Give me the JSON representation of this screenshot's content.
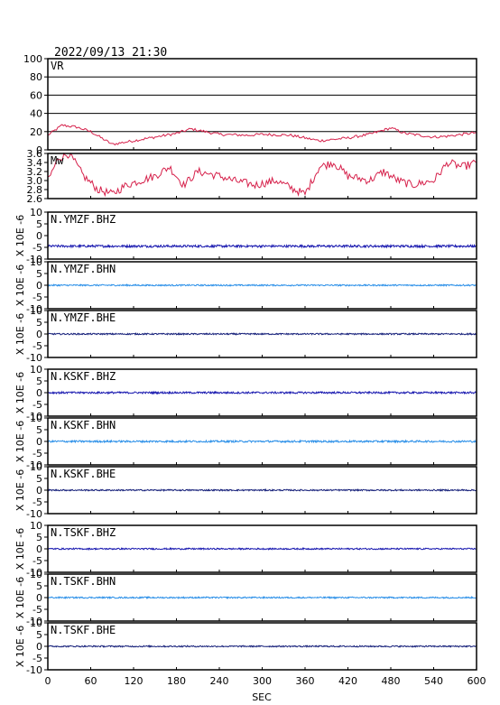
{
  "header": {
    "datetime": "2022/09/13 21:30"
  },
  "colors": {
    "vr": "#d6214b",
    "mw": "#d6214b",
    "bhz": "#1a1ab0",
    "bhn": "#2a8fe8",
    "bhe": "#16207a",
    "grid": "#000000"
  },
  "chart_data": {
    "type": "line",
    "xlabel": "SEC",
    "xlim": [
      0,
      600
    ],
    "xticks": [
      0,
      60,
      120,
      180,
      240,
      300,
      360,
      420,
      480,
      540,
      600
    ],
    "panels": [
      {
        "name": "VR",
        "ylim": [
          0,
          100
        ],
        "yticks": [
          0,
          20,
          40,
          60,
          80,
          100
        ],
        "grid": true,
        "color_key": "vr",
        "x": [
          0,
          20,
          40,
          60,
          90,
          120,
          150,
          180,
          200,
          240,
          280,
          300,
          340,
          360,
          380,
          420,
          450,
          480,
          500,
          540,
          560,
          600
        ],
        "y": [
          16,
          27,
          25,
          20,
          6,
          10,
          14,
          18,
          23,
          17,
          16,
          17,
          16,
          13,
          10,
          13,
          17,
          24,
          18,
          14,
          15,
          19
        ]
      },
      {
        "name": "Mw",
        "ylim": [
          2.6,
          3.6
        ],
        "yticks": [
          2.6,
          2.8,
          3.0,
          3.2,
          3.4,
          3.6
        ],
        "grid": false,
        "color_key": "mw",
        "x": [
          0,
          15,
          30,
          50,
          70,
          90,
          110,
          130,
          150,
          170,
          190,
          210,
          240,
          260,
          290,
          320,
          345,
          360,
          380,
          400,
          420,
          450,
          470,
          490,
          510,
          540,
          560,
          580,
          600
        ],
        "y": [
          3.0,
          3.5,
          3.6,
          3.1,
          2.8,
          2.7,
          2.9,
          3.0,
          3.1,
          3.3,
          2.9,
          3.2,
          3.1,
          3.0,
          2.9,
          3.0,
          2.8,
          2.7,
          3.3,
          3.4,
          3.1,
          3.0,
          3.2,
          3.0,
          2.9,
          3.0,
          3.4,
          3.3,
          3.4
        ]
      },
      {
        "name": "N.YMZF.BHZ",
        "ylim": [
          -10,
          10
        ],
        "yticks": [
          -10,
          -5,
          0,
          5,
          10
        ],
        "color_key": "bhz",
        "baseline": -4.5,
        "noise": 0.5,
        "ylabel": "X 10E -6"
      },
      {
        "name": "N.YMZF.BHN",
        "ylim": [
          -10,
          10
        ],
        "yticks": [
          -10,
          -5,
          0,
          5,
          10
        ],
        "color_key": "bhn",
        "baseline": 0.0,
        "noise": 0.3,
        "ylabel": "X 10E -6"
      },
      {
        "name": "N.YMZF.BHE",
        "ylim": [
          -10,
          10
        ],
        "yticks": [
          -10,
          -5,
          0,
          5,
          10
        ],
        "color_key": "bhe",
        "baseline": 0.0,
        "noise": 0.3,
        "ylabel": "X 10E -6"
      },
      {
        "name": "N.KSKF.BHZ",
        "ylim": [
          -10,
          10
        ],
        "yticks": [
          -10,
          -5,
          0,
          5,
          10
        ],
        "color_key": "bhz",
        "baseline": 0.0,
        "noise": 0.4,
        "ylabel": "X 10E -6"
      },
      {
        "name": "N.KSKF.BHN",
        "ylim": [
          -10,
          10
        ],
        "yticks": [
          -10,
          -5,
          0,
          5,
          10
        ],
        "color_key": "bhn",
        "baseline": 0.0,
        "noise": 0.4,
        "ylabel": "X 10E -6"
      },
      {
        "name": "N.KSKF.BHE",
        "ylim": [
          -10,
          10
        ],
        "yticks": [
          -10,
          -5,
          0,
          5,
          10
        ],
        "color_key": "bhe",
        "baseline": 0.0,
        "noise": 0.3,
        "ylabel": "X 10E -6"
      },
      {
        "name": "N.TSKF.BHZ",
        "ylim": [
          -10,
          10
        ],
        "yticks": [
          -10,
          -5,
          0,
          5,
          10
        ],
        "color_key": "bhz",
        "baseline": 0.0,
        "noise": 0.3,
        "ylabel": "X 10E -6"
      },
      {
        "name": "N.TSKF.BHN",
        "ylim": [
          -10,
          10
        ],
        "yticks": [
          -10,
          -5,
          0,
          5,
          10
        ],
        "color_key": "bhn",
        "baseline": 0.0,
        "noise": 0.3,
        "ylabel": "X 10E -6"
      },
      {
        "name": "N.TSKF.BHE",
        "ylim": [
          -10,
          10
        ],
        "yticks": [
          -10,
          -5,
          0,
          5,
          10
        ],
        "color_key": "bhe",
        "baseline": 0.0,
        "noise": 0.3,
        "ylabel": "X 10E -6"
      }
    ]
  }
}
